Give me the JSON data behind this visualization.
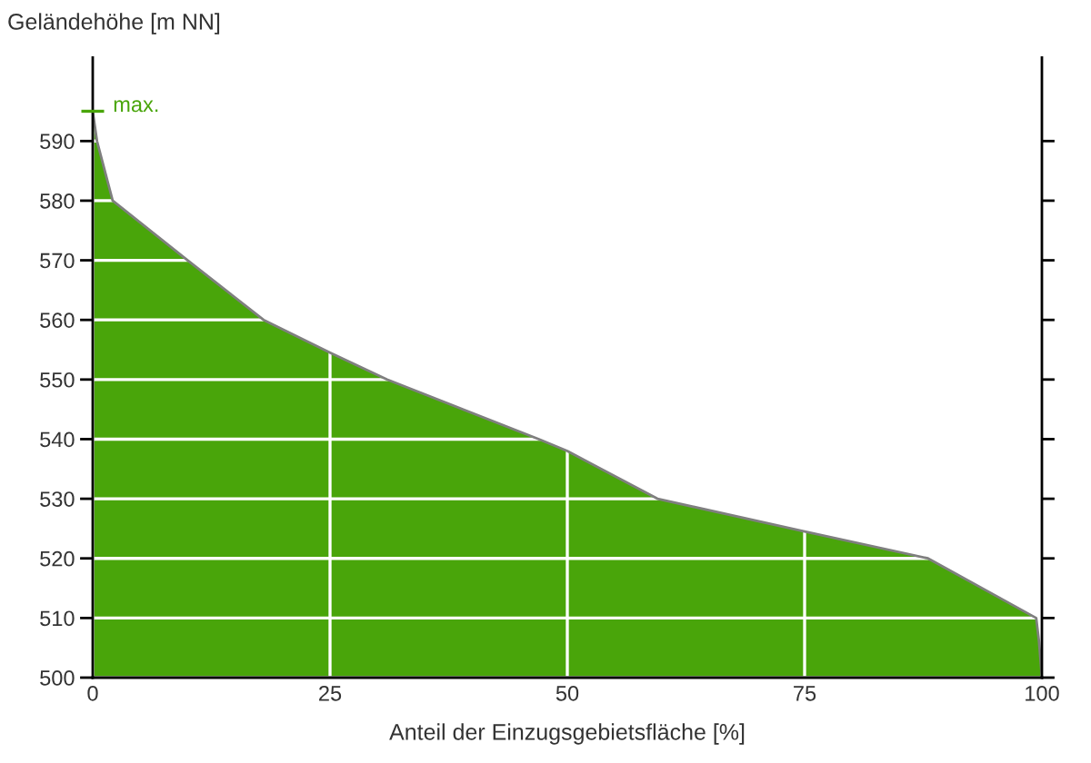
{
  "chart_data": {
    "type": "area",
    "ylabel": "Geländehöhe [m NN]",
    "xlabel": "Anteil der Einzugsgebietsfläche [%]",
    "x": [
      0,
      0.45,
      2.1,
      10,
      18,
      25,
      31,
      47,
      50,
      59.5,
      75,
      88,
      99.4,
      99.7,
      100
    ],
    "series": [
      {
        "color": "#49a50a",
        "values": [
          595,
          590,
          580,
          570,
          560,
          554.5,
          550,
          540,
          538,
          530,
          524.5,
          520,
          510,
          506,
          500
        ]
      }
    ],
    "xlim": [
      0,
      100
    ],
    "xticks": [
      0,
      25,
      50,
      75,
      100
    ],
    "ylim": [
      500,
      604
    ],
    "yticks": [
      500,
      510,
      520,
      530,
      540,
      550,
      560,
      570,
      580,
      590
    ],
    "grid": true,
    "annotations": [
      {
        "text": "max.",
        "x": 0,
        "y": 595
      }
    ]
  }
}
